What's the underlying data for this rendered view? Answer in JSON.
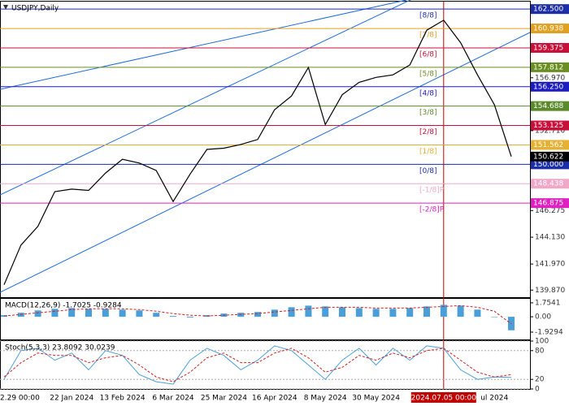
{
  "chart_data": [
    {
      "type": "line",
      "title": "USDJPY,Daily",
      "categories": [
        "2.29 00:00",
        null,
        null,
        null,
        "22 Jan 2024",
        null,
        null,
        "13 Feb 2024",
        null,
        null,
        "6 Mar 2024",
        null,
        null,
        "25 Mar 2024",
        null,
        null,
        "16 Apr 2024",
        null,
        null,
        "8 May 2024",
        null,
        null,
        "30 May 2024",
        null,
        null,
        null,
        "2024.07.05 00:00",
        null,
        null,
        "ul 2024",
        null
      ],
      "values": [
        140.3,
        143.5,
        145.0,
        147.8,
        148.0,
        147.9,
        149.3,
        150.4,
        150.1,
        149.5,
        147.0,
        149.2,
        151.2,
        151.3,
        151.6,
        152.0,
        154.4,
        155.5,
        157.8,
        153.2,
        155.6,
        156.6,
        157.0,
        157.2,
        158.0,
        160.8,
        161.6,
        159.8,
        157.2,
        154.8,
        150.622
      ],
      "color": "#000000",
      "ylim": [
        139.3,
        163.1
      ],
      "yticks": [
        {
          "value": 156.97,
          "label": "156.970"
        },
        {
          "value": 152.71,
          "label": "152.710"
        },
        {
          "value": 146.275,
          "label": "146.275"
        },
        {
          "value": 144.13,
          "label": "144.130"
        },
        {
          "value": 141.97,
          "label": "141.970"
        },
        {
          "value": 139.87,
          "label": "139.870"
        }
      ],
      "levels": {
        "names": [
          "[8/8]",
          "[7/8]",
          "[6/8]",
          "[5/8]",
          "[4/8]",
          "[3/8]",
          "[2/8]",
          "[1/8]",
          "[0/8]",
          "[-1/8]P",
          "[-2/8]P"
        ],
        "values": [
          162.5,
          160.938,
          159.375,
          157.812,
          156.25,
          154.688,
          153.125,
          151.562,
          150.0,
          148.438,
          146.875
        ],
        "value_labels": [
          "162.500",
          "160.938",
          "159.375",
          "157.812",
          "156.250",
          "154.688",
          "153.125",
          "151.562",
          "150.000",
          "148.438",
          "146.875"
        ],
        "colors": [
          "#1c2fa8",
          "#e0a020",
          "#c8103a",
          "#6b8e23",
          "#1c1cc0",
          "#5a8a2a",
          "#c8103a",
          "#e6b030",
          "#1c2fa8",
          "#f0a8c8",
          "#e020c0"
        ]
      }
    },
    {
      "type": "bar",
      "title": "MACD(12,26,9) -1.7025 -0.9284",
      "series": [
        {
          "type": "bar",
          "color": "#4a9fd8",
          "values": [
            0.2,
            0.5,
            0.8,
            1.0,
            1.1,
            1.0,
            1.0,
            0.9,
            0.8,
            0.5,
            0.1,
            -0.1,
            0.2,
            0.4,
            0.5,
            0.6,
            0.9,
            1.2,
            1.4,
            1.3,
            1.2,
            1.1,
            1.0,
            1.0,
            1.1,
            1.3,
            1.5,
            1.4,
            0.9,
            0.0,
            -1.7
          ]
        },
        {
          "type": "line",
          "color": "#d02020",
          "dashed": true,
          "values": [
            0.1,
            0.3,
            0.5,
            0.7,
            0.9,
            1.0,
            1.0,
            1.0,
            0.9,
            0.7,
            0.4,
            0.2,
            0.1,
            0.2,
            0.3,
            0.4,
            0.6,
            0.8,
            1.0,
            1.2,
            1.2,
            1.2,
            1.1,
            1.1,
            1.1,
            1.2,
            1.3,
            1.4,
            1.2,
            0.7,
            -0.9
          ]
        }
      ],
      "ylim": [
        -2.85,
        2.26
      ],
      "yticks": [
        1.7541,
        {
          "value": 0,
          "label": "0.00"
        },
        -1.9294
      ]
    },
    {
      "type": "line",
      "title": "Stoch(5,3,3) 23.8092 30.0239",
      "series": [
        {
          "type": "line",
          "color": "#4a9fd8",
          "values": [
            20,
            80,
            85,
            60,
            75,
            40,
            80,
            70,
            30,
            15,
            10,
            60,
            85,
            70,
            40,
            60,
            90,
            80,
            50,
            20,
            60,
            85,
            50,
            85,
            60,
            90,
            85,
            40,
            20,
            25,
            24
          ]
        },
        {
          "type": "line",
          "color": "#d02020",
          "dashed": true,
          "values": [
            25,
            55,
            75,
            70,
            70,
            55,
            65,
            70,
            50,
            25,
            15,
            35,
            65,
            75,
            55,
            55,
            75,
            85,
            65,
            35,
            45,
            70,
            60,
            75,
            65,
            80,
            85,
            60,
            35,
            25,
            30
          ]
        }
      ],
      "ylim": [
        0,
        100
      ],
      "yticks": [
        100,
        80,
        20,
        0
      ]
    }
  ]
}
